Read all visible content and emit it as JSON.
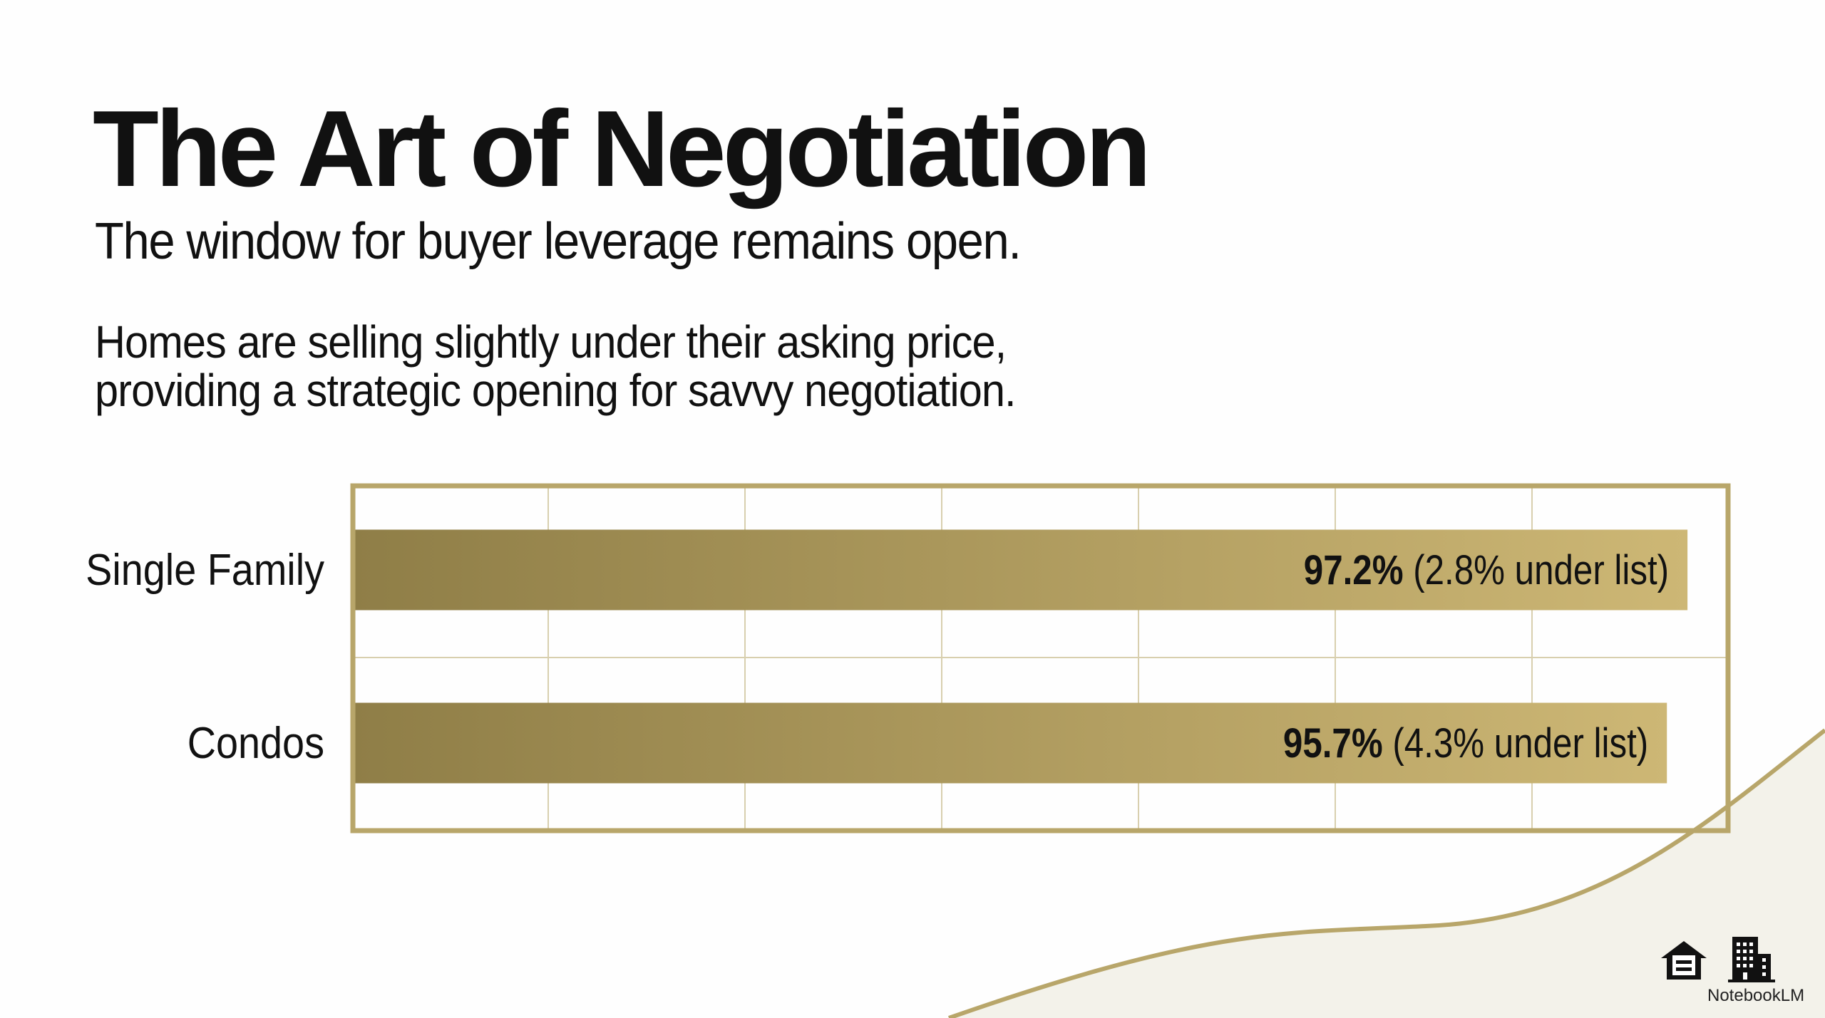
{
  "title": "The Art of Negotiation",
  "subtitle": "The window for buyer leverage remains open.",
  "body_lines": [
    "Homes are selling slightly under their asking price,",
    "providing a strategic opening for savvy negotiation."
  ],
  "accent": "#b8a66a",
  "chart_data": {
    "type": "bar",
    "orientation": "horizontal",
    "categories": [
      "Single Family",
      "Condos"
    ],
    "values": [
      97.2,
      95.7
    ],
    "value_labels": [
      {
        "bold": "97.2%",
        "rest": " (2.8% under list)"
      },
      {
        "bold": "95.7%",
        "rest": " (4.3% under list)"
      }
    ],
    "unit": "% of list price",
    "xlim": [
      0,
      100
    ],
    "grid": true,
    "colors": {
      "bar_start": "#8f7e47",
      "bar_end": "#cdb775",
      "frame": "#b8a66a",
      "grid": "#d8cfae"
    }
  },
  "logo": {
    "text": "NotebookLM",
    "icons": [
      "equal-housing-icon",
      "building-icon"
    ]
  }
}
